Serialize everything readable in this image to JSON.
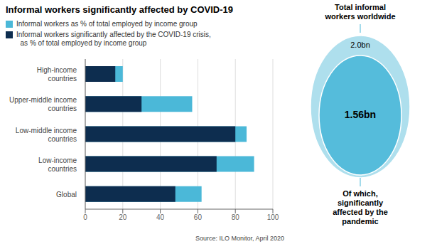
{
  "chart_data": {
    "type": "bar",
    "orientation": "horizontal",
    "title": "Informal workers significantly affected by COVID-19",
    "categories": [
      "High-income\ncountries",
      "Upper-middle income\ncountries",
      "Low-middle income\ncountries",
      "Low-income\ncountries",
      "Global"
    ],
    "series": [
      {
        "name": "Informal workers as % of total employed by income group",
        "color": "#4BB8D8",
        "values": [
          20,
          57,
          86,
          90,
          62
        ]
      },
      {
        "name": "Informal workers significantly affected by the COVID-19 crisis,\n  as % of total employed by income group",
        "color": "#0D2D4F",
        "values": [
          16,
          30,
          80,
          70,
          48
        ]
      }
    ],
    "xlim": [
      0,
      100
    ],
    "xticks": [
      0,
      20,
      40,
      60,
      80,
      100
    ],
    "grid": true,
    "legend": "upper left",
    "annotations": [
      "Source: ILO Monitor, April 2020",
      "Total informal\nworkers worldwide",
      "2.0bn",
      "1.56bn",
      "Of which,\nsignificantly\naffected by the\npandemic"
    ]
  }
}
